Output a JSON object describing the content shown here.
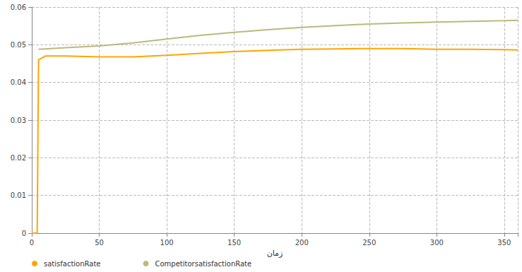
{
  "chart_data": {
    "type": "line",
    "x_label": "زمان",
    "x": [
      0,
      4,
      5,
      10,
      25,
      50,
      75,
      100,
      125,
      150,
      175,
      200,
      225,
      250,
      275,
      300,
      325,
      350,
      360
    ],
    "series": [
      {
        "name": "satisfactionRate",
        "color": "#ffa500",
        "marker": "circle",
        "values": [
          0,
          0,
          0.046,
          0.047,
          0.047,
          0.0468,
          0.0468,
          0.0472,
          0.0477,
          0.0482,
          0.0485,
          0.0488,
          0.0489,
          0.049,
          0.049,
          0.0488,
          0.0488,
          0.0487,
          0.0486
        ]
      },
      {
        "name": "CompetitorsatisfactionRate",
        "color": "#bdb97a",
        "marker": "circle",
        "values": [
          null,
          null,
          0.0488,
          0.0489,
          0.0492,
          0.0497,
          0.0505,
          0.0515,
          0.0525,
          0.0533,
          0.054,
          0.0546,
          0.0551,
          0.0555,
          0.0558,
          0.056,
          0.0562,
          0.0564,
          0.0565
        ]
      }
    ],
    "xlim": [
      0,
      360
    ],
    "xticks": [
      0,
      50,
      100,
      150,
      200,
      250,
      300,
      350
    ],
    "ylim": [
      0,
      0.06
    ],
    "yticks": [
      0,
      0.01,
      0.02,
      0.03,
      0.04,
      0.05,
      0.06
    ],
    "grid": true,
    "legend": "bottom-left"
  }
}
